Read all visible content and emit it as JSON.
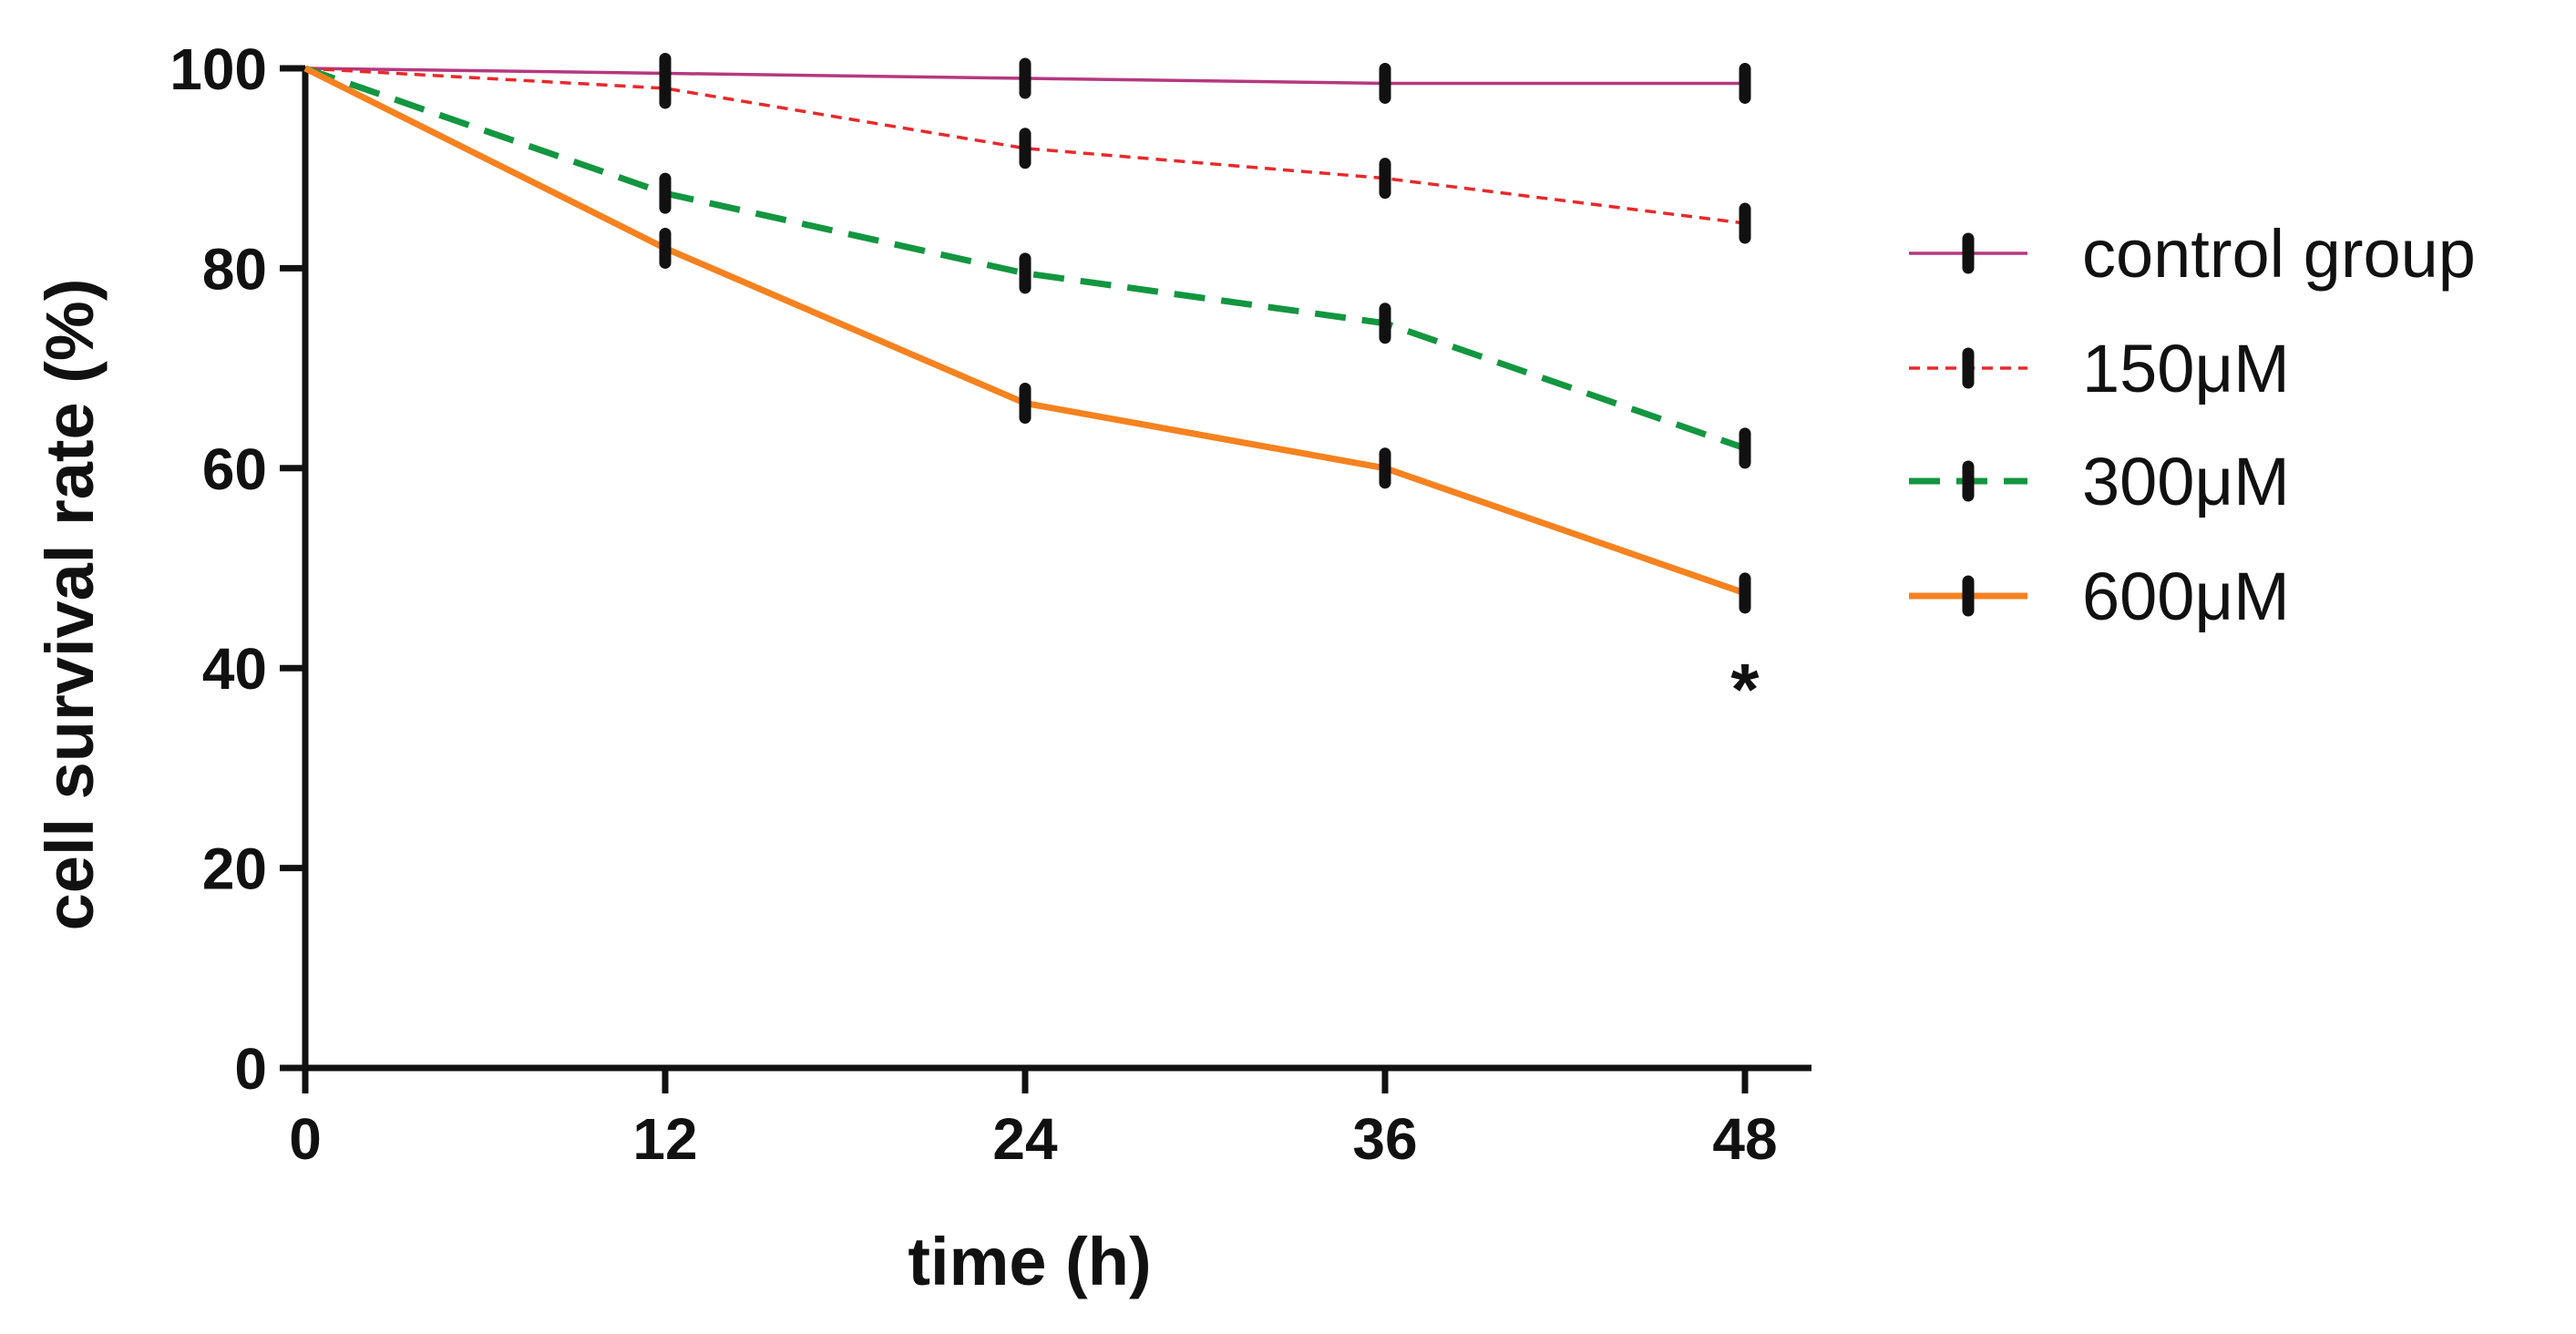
{
  "chart_data": {
    "type": "line",
    "title": "",
    "xlabel": "time (h)",
    "ylabel": "cell survival rate (%)",
    "x": [
      0,
      12,
      24,
      36,
      48
    ],
    "xticks": [
      "0",
      "12",
      "24",
      "36",
      "48"
    ],
    "yticks": [
      "0",
      "20",
      "40",
      "60",
      "80",
      "100"
    ],
    "xlim": [
      0,
      48
    ],
    "ylim": [
      0,
      100
    ],
    "grid": false,
    "legend_position": "right",
    "series": [
      {
        "name": "control group",
        "values": [
          100,
          99.5,
          99,
          98.5,
          98.5
        ],
        "color": "#b5387f",
        "style": "solid"
      },
      {
        "name": "150μM",
        "values": [
          100,
          98,
          92,
          89,
          84.5
        ],
        "color": "#e8292b",
        "style": "dotted"
      },
      {
        "name": "300μM",
        "values": [
          100,
          87.5,
          79.5,
          74.5,
          62
        ],
        "color": "#139640",
        "style": "dashed"
      },
      {
        "name": "600μM",
        "values": [
          100,
          82,
          66.5,
          60,
          47.5
        ],
        "color": "#f5821f",
        "style": "solid-thick"
      }
    ],
    "annotations": [
      {
        "text": "*",
        "x": 48,
        "y": 39
      }
    ]
  }
}
